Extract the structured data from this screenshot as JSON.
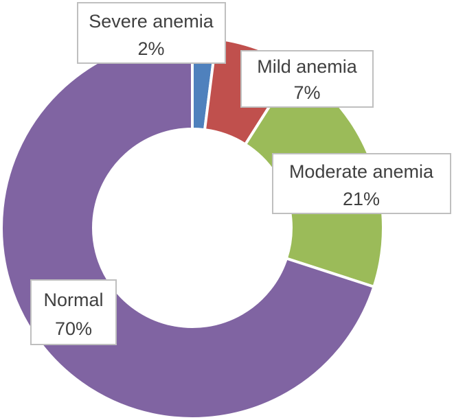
{
  "chart_data": {
    "type": "pie",
    "subtype": "donut",
    "legend": "none",
    "series": [
      {
        "categories": [
          "Severe anemia",
          "Mild anemia",
          "Moderate anemia",
          "Normal"
        ],
        "values": [
          2,
          7,
          21,
          70
        ],
        "value_labels": [
          "2%",
          "7%",
          "21%",
          "70%"
        ],
        "colors": [
          "#4f81bd",
          "#c0504d",
          "#9bbb59",
          "#8064a2"
        ]
      }
    ]
  }
}
